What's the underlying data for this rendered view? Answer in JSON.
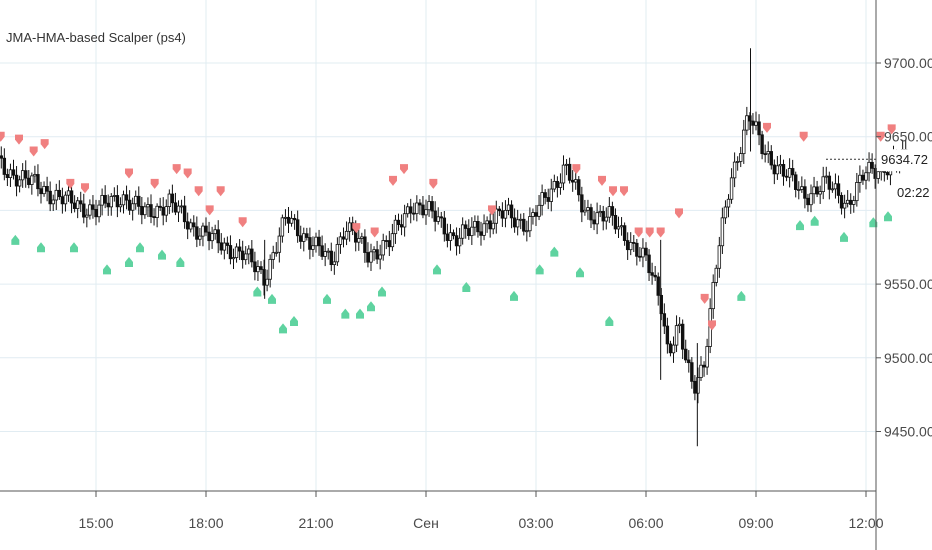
{
  "indicator_title": "JMA-HMA-based Scalper (ps4)",
  "colors": {
    "background": "#ffffff",
    "grid": "#e1ecf2",
    "candle": "#111111",
    "sell_marker": "#f08080",
    "buy_marker": "#5fd3a0",
    "axis_text": "#4a4a4a"
  },
  "chart_data": {
    "type": "candlestick",
    "title": "JMA-HMA-based Scalper (ps4)",
    "x_ticks": [
      "15:00",
      "18:00",
      "21:00",
      "Сен",
      "03:00",
      "06:00",
      "09:00",
      "12:00"
    ],
    "y_ticks": [
      "9450.00",
      "9500.00",
      "9550.00",
      "9650.00",
      "9700.00"
    ],
    "ylim": [
      9410,
      9730
    ],
    "last_price": "9634.72",
    "countdown": "02:22",
    "grid": true,
    "price_path": [
      {
        "t": 12.0,
        "p": 9640
      },
      {
        "t": 12.5,
        "p": 9628
      },
      {
        "t": 13.3,
        "p": 9618
      },
      {
        "t": 14.2,
        "p": 9606
      },
      {
        "t": 15.0,
        "p": 9600
      },
      {
        "t": 15.7,
        "p": 9610
      },
      {
        "t": 16.3,
        "p": 9598
      },
      {
        "t": 17.0,
        "p": 9605
      },
      {
        "t": 17.6,
        "p": 9590
      },
      {
        "t": 18.2,
        "p": 9580
      },
      {
        "t": 19.0,
        "p": 9570
      },
      {
        "t": 19.6,
        "p": 9555
      },
      {
        "t": 20.2,
        "p": 9595
      },
      {
        "t": 20.8,
        "p": 9580
      },
      {
        "t": 21.4,
        "p": 9565
      },
      {
        "t": 21.8,
        "p": 9590
      },
      {
        "t": 22.4,
        "p": 9570
      },
      {
        "t": 23.0,
        "p": 9578
      },
      {
        "t": 23.6,
        "p": 9605
      },
      {
        "t": 24.3,
        "p": 9595
      },
      {
        "t": 24.8,
        "p": 9580
      },
      {
        "t": 25.5,
        "p": 9590
      },
      {
        "t": 26.2,
        "p": 9598
      },
      {
        "t": 26.8,
        "p": 9590
      },
      {
        "t": 27.3,
        "p": 9610
      },
      {
        "t": 27.8,
        "p": 9630
      },
      {
        "t": 28.3,
        "p": 9600
      },
      {
        "t": 29.0,
        "p": 9595
      },
      {
        "t": 29.6,
        "p": 9578
      },
      {
        "t": 30.0,
        "p": 9565
      },
      {
        "t": 30.4,
        "p": 9540
      },
      {
        "t": 30.6,
        "p": 9505
      },
      {
        "t": 30.9,
        "p": 9520
      },
      {
        "t": 31.1,
        "p": 9495
      },
      {
        "t": 31.3,
        "p": 9480
      },
      {
        "t": 31.6,
        "p": 9500
      },
      {
        "t": 31.9,
        "p": 9560
      },
      {
        "t": 32.3,
        "p": 9620
      },
      {
        "t": 32.8,
        "p": 9665
      },
      {
        "t": 33.2,
        "p": 9640
      },
      {
        "t": 33.8,
        "p": 9625
      },
      {
        "t": 34.3,
        "p": 9610
      },
      {
        "t": 34.9,
        "p": 9618
      },
      {
        "t": 35.5,
        "p": 9605
      },
      {
        "t": 36.0,
        "p": 9625
      },
      {
        "t": 36.5,
        "p": 9630
      },
      {
        "t": 37.1,
        "p": 9635
      }
    ],
    "spikes": [
      {
        "t": 19.6,
        "high": 9580,
        "low": 9540
      },
      {
        "t": 30.4,
        "high": 9580,
        "low": 9485
      },
      {
        "t": 31.4,
        "high": 9510,
        "low": 9440
      },
      {
        "t": 32.85,
        "high": 9710,
        "low": 9640
      }
    ],
    "sell_signals": [
      {
        "t": 12.4,
        "p": 9650
      },
      {
        "t": 12.9,
        "p": 9648
      },
      {
        "t": 13.3,
        "p": 9640
      },
      {
        "t": 13.6,
        "p": 9645
      },
      {
        "t": 14.3,
        "p": 9618
      },
      {
        "t": 14.7,
        "p": 9615
      },
      {
        "t": 15.9,
        "p": 9625
      },
      {
        "t": 16.6,
        "p": 9618
      },
      {
        "t": 17.2,
        "p": 9628
      },
      {
        "t": 17.5,
        "p": 9625
      },
      {
        "t": 17.8,
        "p": 9613
      },
      {
        "t": 18.1,
        "p": 9600
      },
      {
        "t": 18.4,
        "p": 9613
      },
      {
        "t": 19.0,
        "p": 9592
      },
      {
        "t": 22.1,
        "p": 9588
      },
      {
        "t": 22.6,
        "p": 9585
      },
      {
        "t": 23.1,
        "p": 9620
      },
      {
        "t": 23.4,
        "p": 9628
      },
      {
        "t": 24.2,
        "p": 9618
      },
      {
        "t": 25.8,
        "p": 9600
      },
      {
        "t": 28.1,
        "p": 9628
      },
      {
        "t": 28.8,
        "p": 9620
      },
      {
        "t": 29.1,
        "p": 9613
      },
      {
        "t": 29.4,
        "p": 9613
      },
      {
        "t": 29.8,
        "p": 9585
      },
      {
        "t": 30.1,
        "p": 9585
      },
      {
        "t": 30.4,
        "p": 9585
      },
      {
        "t": 30.9,
        "p": 9598
      },
      {
        "t": 31.6,
        "p": 9540
      },
      {
        "t": 31.8,
        "p": 9522
      },
      {
        "t": 33.3,
        "p": 9656
      },
      {
        "t": 34.3,
        "p": 9650
      },
      {
        "t": 36.4,
        "p": 9650
      },
      {
        "t": 36.7,
        "p": 9655
      }
    ],
    "buy_signals": [
      {
        "t": 12.0,
        "p": 9590
      },
      {
        "t": 12.8,
        "p": 9580
      },
      {
        "t": 13.5,
        "p": 9575
      },
      {
        "t": 14.4,
        "p": 9575
      },
      {
        "t": 15.3,
        "p": 9560
      },
      {
        "t": 15.9,
        "p": 9565
      },
      {
        "t": 16.2,
        "p": 9575
      },
      {
        "t": 16.8,
        "p": 9570
      },
      {
        "t": 17.3,
        "p": 9565
      },
      {
        "t": 19.4,
        "p": 9545
      },
      {
        "t": 19.8,
        "p": 9540
      },
      {
        "t": 20.1,
        "p": 9520
      },
      {
        "t": 20.4,
        "p": 9525
      },
      {
        "t": 21.3,
        "p": 9540
      },
      {
        "t": 21.8,
        "p": 9530
      },
      {
        "t": 22.2,
        "p": 9530
      },
      {
        "t": 22.5,
        "p": 9535
      },
      {
        "t": 22.8,
        "p": 9545
      },
      {
        "t": 24.3,
        "p": 9560
      },
      {
        "t": 25.1,
        "p": 9548
      },
      {
        "t": 26.4,
        "p": 9542
      },
      {
        "t": 27.1,
        "p": 9560
      },
      {
        "t": 27.5,
        "p": 9572
      },
      {
        "t": 28.2,
        "p": 9558
      },
      {
        "t": 29.0,
        "p": 9525
      },
      {
        "t": 32.6,
        "p": 9542
      },
      {
        "t": 34.2,
        "p": 9590
      },
      {
        "t": 34.6,
        "p": 9593
      },
      {
        "t": 35.4,
        "p": 9582
      },
      {
        "t": 36.2,
        "p": 9592
      },
      {
        "t": 36.6,
        "p": 9596
      }
    ]
  }
}
